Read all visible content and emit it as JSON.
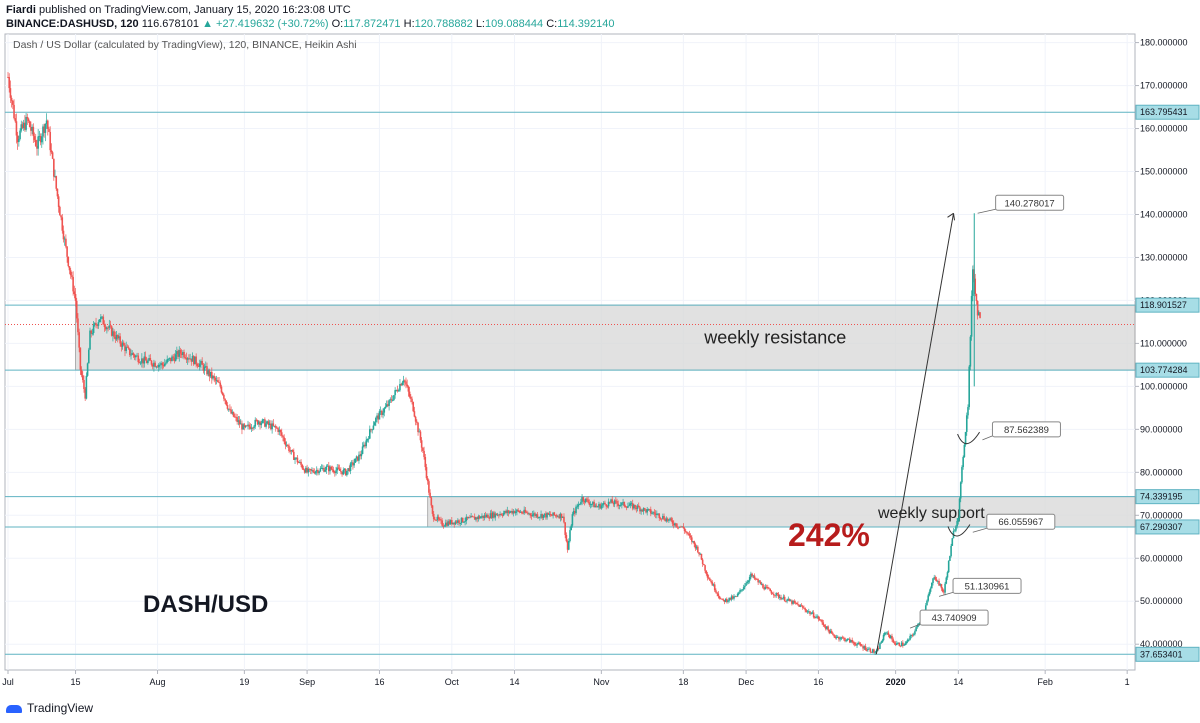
{
  "header": {
    "published_by": "Fiardi",
    "published_text": "published on TradingView.com, January 15, 2020 16:23:08 UTC",
    "symbol": "BINANCE:DASHUSD, 120",
    "last": "116.678101",
    "change": "▲ +27.419632 (+30.72%)",
    "o_label": "O:",
    "o": "117.872471",
    "h_label": "H:",
    "h": "120.788882",
    "l_label": "L:",
    "l": "109.088444",
    "c_label": "C:",
    "c": "114.392140"
  },
  "footer": {
    "brand": "TradingView"
  },
  "chart_data": {
    "type": "candlestick",
    "title": "Dash / US Dollar (calculated by TradingView), 120, BINANCE, Heikin Ashi",
    "overlay_title": "DASH/USD",
    "ylim": [
      34,
      182
    ],
    "y_ticks": [
      "180.000000",
      "170.000000",
      "160.000000",
      "150.000000",
      "140.000000",
      "130.000000",
      "120.000000",
      "110.000000",
      "100.000000",
      "90.000000",
      "80.000000",
      "70.000000",
      "60.000000",
      "50.000000",
      "40.000000"
    ],
    "x_ticks": [
      {
        "label": "Jul",
        "d": 0
      },
      {
        "label": "15",
        "d": 14
      },
      {
        "label": "Aug",
        "d": 31
      },
      {
        "label": "19",
        "d": 49
      },
      {
        "label": "Sep",
        "d": 62
      },
      {
        "label": "16",
        "d": 77
      },
      {
        "label": "Oct",
        "d": 92
      },
      {
        "label": "14",
        "d": 105
      },
      {
        "label": "Nov",
        "d": 123
      },
      {
        "label": "18",
        "d": 140
      },
      {
        "label": "Dec",
        "d": 153
      },
      {
        "label": "16",
        "d": 168
      },
      {
        "label": "2020",
        "d": 184
      },
      {
        "label": "14",
        "d": 197
      },
      {
        "label": "Feb",
        "d": 215
      },
      {
        "label": "1",
        "d": 232
      }
    ],
    "x_range_days": [
      0,
      233
    ],
    "price_path": [
      [
        0,
        172
      ],
      [
        2,
        158
      ],
      [
        4,
        162
      ],
      [
        6,
        156
      ],
      [
        8,
        162
      ],
      [
        10,
        146
      ],
      [
        12,
        132
      ],
      [
        14,
        120
      ],
      [
        15,
        104
      ],
      [
        16,
        98
      ],
      [
        17,
        112
      ],
      [
        19,
        116
      ],
      [
        22,
        112
      ],
      [
        25,
        108
      ],
      [
        28,
        106
      ],
      [
        32,
        105
      ],
      [
        36,
        108
      ],
      [
        40,
        105
      ],
      [
        44,
        100
      ],
      [
        46,
        94
      ],
      [
        49,
        90
      ],
      [
        52,
        92
      ],
      [
        56,
        90
      ],
      [
        59,
        84
      ],
      [
        62,
        80
      ],
      [
        66,
        81
      ],
      [
        70,
        80
      ],
      [
        73,
        84
      ],
      [
        76,
        92
      ],
      [
        79,
        96
      ],
      [
        82,
        102
      ],
      [
        84,
        95
      ],
      [
        86,
        85
      ],
      [
        88,
        70
      ],
      [
        90,
        68
      ],
      [
        95,
        69
      ],
      [
        100,
        70
      ],
      [
        105,
        71
      ],
      [
        110,
        70
      ],
      [
        115,
        70
      ],
      [
        116,
        62
      ],
      [
        117,
        70
      ],
      [
        119,
        74
      ],
      [
        122,
        72
      ],
      [
        125,
        73
      ],
      [
        130,
        72
      ],
      [
        135,
        70
      ],
      [
        140,
        67
      ],
      [
        143,
        62
      ],
      [
        145,
        56
      ],
      [
        148,
        50
      ],
      [
        151,
        51
      ],
      [
        154,
        56
      ],
      [
        157,
        53
      ],
      [
        160,
        51
      ],
      [
        164,
        49
      ],
      [
        168,
        46
      ],
      [
        171,
        42
      ],
      [
        174,
        41
      ],
      [
        178,
        39
      ],
      [
        180,
        38
      ],
      [
        182,
        43
      ],
      [
        184,
        40
      ],
      [
        186,
        40
      ],
      [
        188,
        43
      ],
      [
        190,
        48
      ],
      [
        192,
        56
      ],
      [
        194,
        52
      ],
      [
        196,
        66
      ],
      [
        197,
        70
      ],
      [
        198,
        84
      ],
      [
        199,
        96
      ],
      [
        200,
        128
      ],
      [
        201,
        117
      ],
      [
        201.5,
        116.7
      ]
    ],
    "levels": [
      {
        "label": "163.795431",
        "value": 163.795431
      },
      {
        "label": "118.901527",
        "value": 118.901527
      },
      {
        "label": "103.774284",
        "value": 103.774284
      },
      {
        "label": "74.339195",
        "value": 74.339195
      },
      {
        "label": "67.290307",
        "value": 67.290307
      },
      {
        "label": "37.653401",
        "value": 37.653401
      }
    ],
    "current_price": 114.39214,
    "zones": [
      {
        "label": "weekly resistance",
        "from": 103.774284,
        "to": 118.901527
      },
      {
        "label": "weekly support",
        "from": 67.290307,
        "to": 74.339195
      }
    ],
    "annotations": [
      {
        "label": "140.278017",
        "value": 140.278017
      },
      {
        "label": "87.562389",
        "value": 87.562389
      },
      {
        "label": "66.055967",
        "value": 66.055967
      },
      {
        "label": "51.130961",
        "value": 51.130961
      },
      {
        "label": "43.740909",
        "value": 43.740909
      }
    ],
    "big_label": "242%",
    "colors": {
      "up": "#26a69a",
      "down": "#ef5350",
      "level": "#5fb3c2",
      "zone": "#d9d9d9",
      "percent": "#b71c1c"
    }
  }
}
